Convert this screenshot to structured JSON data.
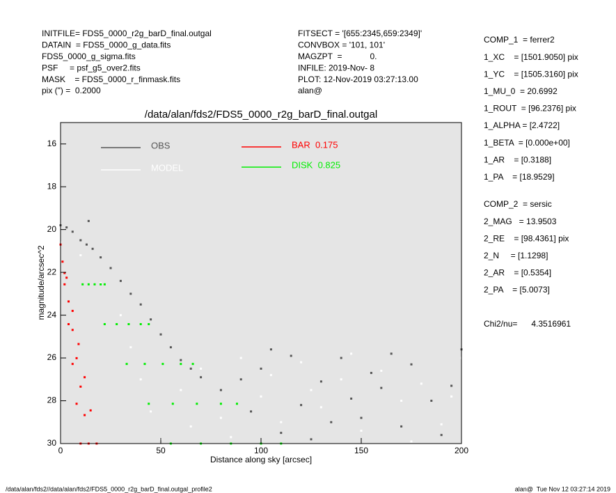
{
  "header": {
    "left": [
      "INITFILE= FDS5_0000_r2g_barD_final.outgal",
      "DATAIN  = FDS5_0000_g_data.fits",
      "FDS5_0000_g_sigma.fits",
      "PSF     = psf_g5_over2.fits",
      "MASK    = FDS5_0000_r_finmask.fits",
      "pix (\") =  0.2000"
    ],
    "middle": [
      "FITSECT = '[655:2345,659:2349]'",
      "CONVBOX = '101, 101'",
      "MAGZPT  =            0.",
      "INFILE: 2019-Nov- 8",
      "PLOT: 12-Nov-2019 03:27:13.00",
      "alan@"
    ],
    "params": [
      [
        "COMP_1  = ferrer2",
        "1_XC    = [1501.9050] pix",
        "1_YC    = [1505.3160] pix",
        "1_MU_0  = 20.6992",
        "1_ROUT  = [96.2376] pix",
        "1_ALPHA = [2.4722]",
        "1_BETA  = [0.000e+00]",
        "1_AR    = [0.3188]",
        "1_PA    = [18.9529]"
      ],
      [
        "COMP_2  = sersic",
        "2_MAG   = 13.9503",
        "2_RE    = [98.4361] pix",
        "2_N     = [1.1298]",
        "2_AR    = [0.5354]",
        "2_PA    = [5.0073]"
      ],
      [
        "Chi2/nu=      4.3516961"
      ]
    ]
  },
  "footer": {
    "left": "/data/alan/fds2//data/alan/fds2/FDS5_0000_r2g_barD_final.outgal_profile2",
    "right": "alan@  Tue Nov 12 03:27:14 2019"
  },
  "chart_data": {
    "type": "scatter",
    "title": "/data/alan/fds2/FDS5_0000_r2g_barD_final.outgal",
    "x_label": "Distance along sky [arcsec]",
    "y_label": "magnitude/arcsec^2",
    "xlim": [
      0,
      200
    ],
    "ylim": [
      30,
      15
    ],
    "xticks": [
      0,
      50,
      100,
      150,
      200
    ],
    "yticks": [
      16,
      18,
      20,
      22,
      24,
      26,
      28,
      30
    ],
    "series": [
      {
        "name": "OBS",
        "color": "#555555",
        "x": [
          0,
          3,
          6,
          10,
          13,
          14,
          16,
          20,
          25,
          30,
          35,
          40,
          45,
          50,
          55,
          60,
          65,
          70,
          80,
          90,
          95,
          100,
          105,
          110,
          115,
          120,
          125,
          130,
          135,
          140,
          145,
          150,
          155,
          160,
          165,
          170,
          175,
          185,
          190,
          195,
          200
        ],
        "y": [
          19.8,
          19.9,
          20.1,
          20.5,
          20.7,
          19.6,
          20.9,
          21.3,
          21.8,
          22.4,
          23.0,
          23.5,
          24.2,
          24.9,
          25.5,
          26.1,
          26.5,
          26.9,
          27.5,
          27.0,
          28.5,
          26.5,
          25.6,
          29.5,
          25.9,
          28.2,
          29.8,
          27.1,
          29.0,
          26.0,
          27.9,
          28.8,
          26.7,
          27.4,
          25.8,
          29.2,
          26.3,
          28.0,
          29.6,
          27.3,
          25.6
        ]
      },
      {
        "name": "MODEL",
        "color": "#ffffff",
        "x": [
          0,
          10,
          20,
          30,
          35,
          40,
          45,
          50,
          60,
          65,
          70,
          80,
          85,
          90,
          100,
          105,
          110,
          120,
          125,
          130,
          140,
          145,
          150,
          160,
          170,
          175,
          180,
          190,
          195,
          200
        ],
        "y": [
          20.6,
          21.2,
          22.5,
          24.0,
          25.5,
          27.0,
          28.5,
          29.8,
          27.5,
          29.2,
          26.5,
          28.8,
          29.7,
          26.0,
          27.8,
          26.8,
          29.0,
          26.2,
          27.5,
          28.3,
          27.0,
          25.8,
          29.4,
          26.6,
          28.0,
          29.9,
          27.2,
          29.1,
          27.8,
          26.0
        ]
      },
      {
        "name": "BAR  0.175",
        "color": "#ff0000",
        "x": [
          0,
          1,
          2,
          4,
          6,
          8,
          10,
          2,
          4,
          6,
          8,
          10,
          12,
          14,
          3,
          6,
          9,
          12,
          15,
          18
        ],
        "y": [
          20.7,
          21.5,
          22.56,
          24.42,
          26.28,
          28.14,
          30,
          22.03,
          23.36,
          24.69,
          26.01,
          27.34,
          28.67,
          30,
          22.25,
          23.8,
          25.35,
          26.9,
          28.45,
          30
        ]
      },
      {
        "name": "DISK  0.825",
        "color": "#00ee00",
        "x": [
          11,
          22,
          33,
          44,
          55,
          14,
          28,
          42,
          56,
          70,
          17,
          34,
          51,
          68,
          85,
          20,
          40,
          60,
          80,
          100,
          22,
          44,
          66,
          88,
          110
        ],
        "y": [
          22.56,
          24.42,
          26.28,
          28.14,
          30,
          22.56,
          24.42,
          26.28,
          28.14,
          30,
          22.56,
          24.42,
          26.28,
          28.14,
          30,
          22.56,
          24.42,
          26.28,
          28.14,
          30,
          22.56,
          24.42,
          26.28,
          28.14,
          30
        ]
      }
    ]
  }
}
